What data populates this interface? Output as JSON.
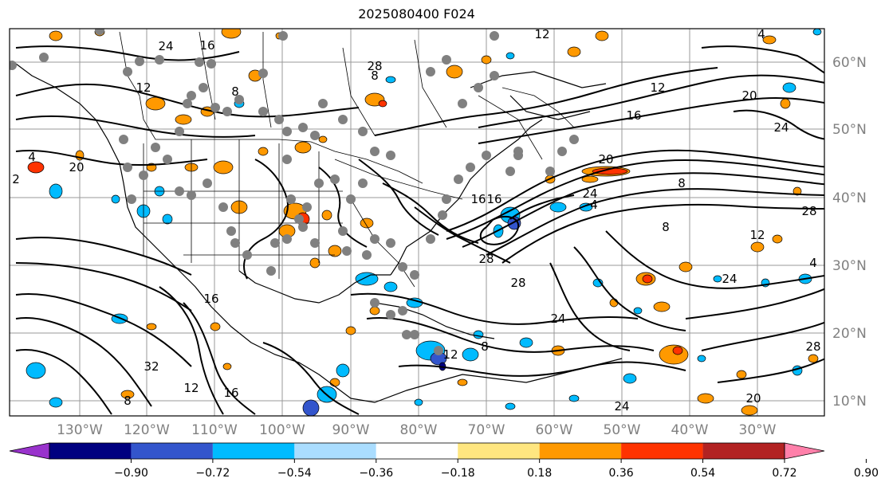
{
  "title": "2025080400 F024",
  "longitude_labels": [
    "130°W",
    "120°W",
    "110°W",
    "100°W",
    "90°W",
    "80°W",
    "70°W",
    "60°W",
    "50°W",
    "40°W",
    "30°W"
  ],
  "latitude_labels": [
    "60°N",
    "50°N",
    "40°N",
    "30°N",
    "20°N",
    "10°N"
  ],
  "colorbar": {
    "ticks": [
      "−0.90",
      "−0.72",
      "−0.54",
      "−0.36",
      "−0.18",
      "0.18",
      "0.36",
      "0.54",
      "0.72",
      "0.90"
    ],
    "colors": [
      "#9933cc",
      "#000080",
      "#3355cc",
      "#00bbff",
      "#aaddff",
      "#ffffff",
      "#ffe680",
      "#ff9900",
      "#ff3300",
      "#b22222",
      "#ff80aa"
    ]
  },
  "contour_labels": [
    "12",
    "16",
    "8",
    "4",
    "12",
    "16",
    "20",
    "24",
    "28",
    "32",
    "8",
    "12",
    "16",
    "28",
    "24",
    "20",
    "4",
    "8",
    "12",
    "16",
    "28",
    "24",
    "4",
    "8",
    "12",
    "16",
    "20",
    "24",
    "28",
    "8",
    "12",
    "4",
    "8",
    "24",
    "28",
    "20",
    "24",
    "16",
    "2"
  ]
}
